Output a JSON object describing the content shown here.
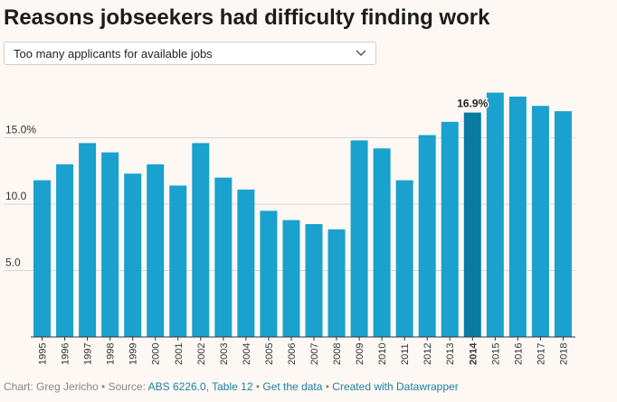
{
  "title": "Reasons jobseekers had difficulty finding work",
  "dropdown": {
    "selected": "Too many applicants for available jobs"
  },
  "footer": {
    "chart_by": "Chart: Greg Jericho",
    "sep1": " • Source: ",
    "source_link": "ABS 6226.0, Table 12",
    "sep2": " • ",
    "get_data": "Get the data",
    "sep3": " • ",
    "created_with": "Created with Datawrapper"
  },
  "colors": {
    "bar": "#1aa1cd",
    "highlight_bar": "#0a7aa1",
    "grid": "#d8d8d8",
    "axis": "#333333",
    "text": "#333333",
    "background": "#fdf8f4"
  },
  "chart_data": {
    "type": "bar",
    "title": "Reasons jobseekers had difficulty finding work",
    "xlabel": "",
    "ylabel": "",
    "categories": [
      "1995",
      "1996",
      "1997",
      "1998",
      "1999",
      "2000",
      "2001",
      "2002",
      "2003",
      "2004",
      "2005",
      "2006",
      "2007",
      "2008",
      "2009",
      "2010",
      "2011",
      "2012",
      "2013",
      "2014",
      "2015",
      "2016",
      "2017",
      "2018"
    ],
    "values": [
      11.8,
      13.0,
      14.6,
      13.9,
      12.3,
      13.0,
      11.4,
      14.6,
      12.0,
      11.1,
      9.5,
      8.8,
      8.5,
      8.1,
      14.8,
      14.2,
      11.8,
      15.2,
      16.2,
      16.9,
      18.4,
      18.1,
      17.4,
      17.0
    ],
    "ylim": [
      0,
      19
    ],
    "yticks": [
      5,
      10,
      15
    ],
    "ytick_labels": [
      "5.0",
      "10.0",
      "15.0%"
    ],
    "grid": true,
    "highlight": {
      "category": "2014",
      "label": "16.9%"
    }
  }
}
